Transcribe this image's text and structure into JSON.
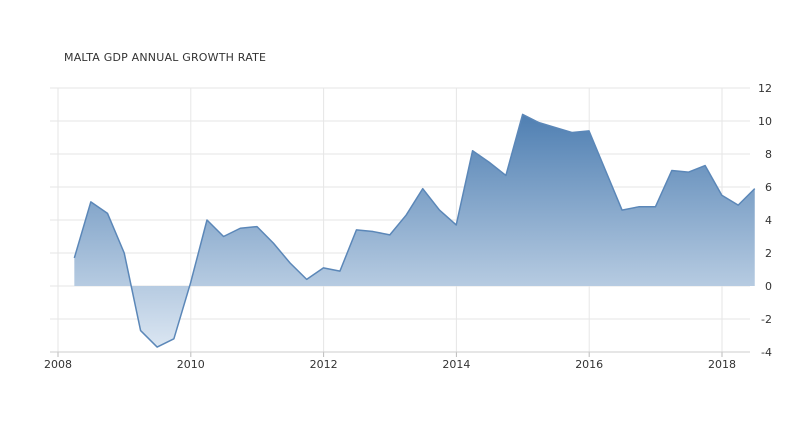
{
  "chart_data": {
    "type": "area",
    "title": "MALTA GDP ANNUAL GROWTH RATE",
    "xlabel": "",
    "ylabel": "",
    "x_ticks": [
      "2008",
      "2010",
      "2012",
      "2014",
      "2016",
      "2018"
    ],
    "y_ticks": [
      "12",
      "10",
      "8",
      "6",
      "4",
      "2",
      "0",
      "-2",
      "-4"
    ],
    "xlim": [
      2008,
      2018.5
    ],
    "ylim": [
      -4,
      12
    ],
    "grid": true,
    "y_axis_position": "right",
    "colors": {
      "line": "#5b87b8",
      "fill_top": "#4f7fb2",
      "fill_bottom": "#dbe6f2",
      "grid": "#e6e6e6"
    },
    "series": [
      {
        "x": [
          "2008-03-31",
          "2008-06-30",
          "2008-09-30",
          "2008-12-31",
          "2009-03-31",
          "2009-06-30",
          "2009-09-30",
          "2009-12-31",
          "2010-03-31",
          "2010-06-30",
          "2010-09-30",
          "2010-12-31",
          "2011-03-31",
          "2011-06-30",
          "2011-09-30",
          "2011-12-31",
          "2012-03-31",
          "2012-06-30",
          "2012-09-30",
          "2012-12-31",
          "2013-03-31",
          "2013-06-30",
          "2013-09-30",
          "2013-12-31",
          "2014-03-31",
          "2014-06-30",
          "2014-09-30",
          "2014-12-31",
          "2015-03-31",
          "2015-06-30",
          "2015-09-30",
          "2015-12-31",
          "2016-03-31",
          "2016-06-30",
          "2016-09-30",
          "2016-12-31",
          "2017-03-31",
          "2017-06-30",
          "2017-09-30",
          "2017-12-31",
          "2018-03-31",
          "2018-06-30"
        ],
        "values": [
          1.7,
          5.1,
          4.4,
          2.0,
          -2.7,
          -3.7,
          -3.2,
          0.2,
          4.0,
          3.0,
          3.5,
          3.6,
          2.6,
          1.4,
          0.4,
          1.1,
          0.9,
          3.4,
          3.3,
          3.1,
          4.3,
          5.9,
          4.6,
          3.7,
          8.2,
          7.5,
          6.7,
          10.4,
          9.9,
          9.6,
          9.3,
          9.4,
          7.0,
          4.6,
          4.8,
          4.8,
          7.0,
          6.9,
          7.3,
          5.5,
          4.9,
          5.9
        ]
      }
    ]
  }
}
